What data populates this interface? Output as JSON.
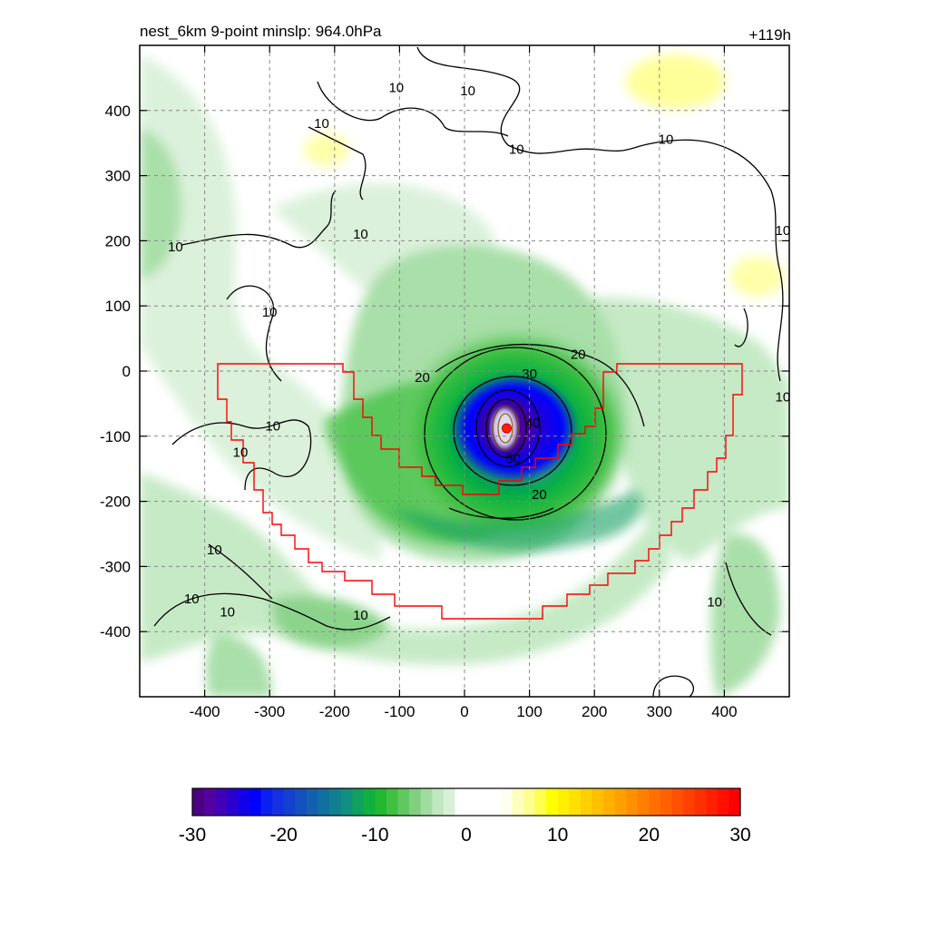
{
  "chart_data": {
    "type": "heatmap",
    "title_left": "nest_6km  9-point minslp: 964.0hPa",
    "title_right": "+119h",
    "xlim": [
      -500,
      500
    ],
    "ylim": [
      -500,
      500
    ],
    "x_ticks": [
      -400,
      -300,
      -200,
      -100,
      0,
      100,
      200,
      300,
      400
    ],
    "y_ticks": [
      400,
      300,
      200,
      100,
      0,
      -100,
      -200,
      -300,
      -400
    ],
    "grid": true,
    "storm_center": {
      "x": 65,
      "y": -88
    },
    "min_slp": "964.0hPa",
    "contour_levels": [
      10,
      20,
      30,
      40,
      50
    ],
    "contour_labels": [
      {
        "text": "10",
        "x": -105,
        "y": 430
      },
      {
        "text": "10",
        "x": 5,
        "y": 425
      },
      {
        "text": "10",
        "x": -220,
        "y": 375
      },
      {
        "text": "10",
        "x": 80,
        "y": 335
      },
      {
        "text": "10",
        "x": 310,
        "y": 350
      },
      {
        "text": "10",
        "x": -160,
        "y": 205
      },
      {
        "text": "10",
        "x": -445,
        "y": 185
      },
      {
        "text": "10",
        "x": -300,
        "y": 85
      },
      {
        "text": "10",
        "x": 490,
        "y": 210
      },
      {
        "text": "10",
        "x": 490,
        "y": -45
      },
      {
        "text": "10",
        "x": -295,
        "y": -90
      },
      {
        "text": "10",
        "x": -345,
        "y": -130
      },
      {
        "text": "10",
        "x": -385,
        "y": -280
      },
      {
        "text": "10",
        "x": -420,
        "y": -355
      },
      {
        "text": "10",
        "x": -365,
        "y": -375
      },
      {
        "text": "10",
        "x": -160,
        "y": -380
      },
      {
        "text": "10",
        "x": 385,
        "y": -360
      },
      {
        "text": "20",
        "x": -65,
        "y": -15
      },
      {
        "text": "20",
        "x": 175,
        "y": 20
      },
      {
        "text": "20",
        "x": 115,
        "y": -195
      },
      {
        "text": "30",
        "x": 100,
        "y": -10
      },
      {
        "text": "40",
        "x": 105,
        "y": -85
      },
      {
        "text": "50",
        "x": 75,
        "y": -140
      }
    ],
    "colorbar": {
      "min": -30,
      "max": 30,
      "tick_labels": [
        "-30",
        "-20",
        "-10",
        "0",
        "10",
        "20",
        "30"
      ],
      "colors": [
        "#4b0082",
        "#5500a0",
        "#4000b8",
        "#2a00d0",
        "#1400e8",
        "#0000ff",
        "#0a20f0",
        "#1430e0",
        "#1440d0",
        "#1450c0",
        "#1460b0",
        "#1070a0",
        "#108090",
        "#109080",
        "#10a060",
        "#10b040",
        "#20b830",
        "#40c040",
        "#60c860",
        "#80d080",
        "#a0dca0",
        "#c0e8c0",
        "#d8f0d8",
        "#ffffff",
        "#ffffff",
        "#ffffff",
        "#ffffff",
        "#fffff0",
        "#ffffc0",
        "#ffff90",
        "#ffff50",
        "#ffff00",
        "#fff000",
        "#ffe000",
        "#ffd000",
        "#ffc000",
        "#ffb000",
        "#ffa000",
        "#ff9000",
        "#ff8000",
        "#ff7000",
        "#ff6000",
        "#ff5000",
        "#ff4000",
        "#ff3000",
        "#ff2000",
        "#ff1000",
        "#ff0000"
      ]
    }
  }
}
